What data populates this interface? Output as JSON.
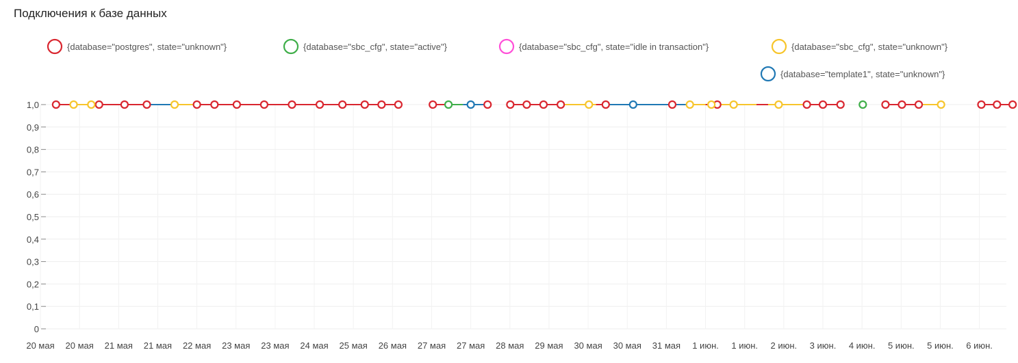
{
  "chart_data": {
    "type": "line",
    "title": "Подключения к базе данных",
    "xlabel": "",
    "ylabel": "",
    "ylim": [
      0,
      1
    ],
    "y_ticks": [
      "0",
      "0,1",
      "0,2",
      "0,3",
      "0,4",
      "0,5",
      "0,6",
      "0,7",
      "0,8",
      "0,9",
      "1,0"
    ],
    "x_tick_labels": [
      "20 мая",
      "20 мая",
      "21 мая",
      "21 мая",
      "22 мая",
      "23 мая",
      "23 мая",
      "24 мая",
      "25 мая",
      "26 мая",
      "27 мая",
      "27 мая",
      "28 мая",
      "29 мая",
      "30 мая",
      "30 мая",
      "31 мая",
      "1 июн.",
      "1 июн.",
      "2 июн.",
      "3 июн.",
      "4 июн.",
      "5 июн.",
      "5 июн.",
      "6 июн."
    ],
    "x_range": [
      0,
      24.4
    ],
    "grid": true,
    "legend_position": "top-right",
    "series": [
      {
        "name": "{database=\"postgres\", state=\"unknown\"}",
        "color": "#d9262f",
        "points": [
          [
            0.4,
            1
          ],
          [
            1.5,
            1
          ],
          [
            2.15,
            1
          ],
          [
            2.72,
            1
          ],
          [
            4.0,
            1
          ],
          [
            4.45,
            1
          ],
          [
            5.02,
            1
          ],
          [
            5.72,
            1
          ],
          [
            6.43,
            1
          ],
          [
            7.14,
            1
          ],
          [
            7.72,
            1
          ],
          [
            8.29,
            1
          ],
          [
            8.72,
            1
          ],
          [
            9.15,
            1
          ],
          [
            10.03,
            1
          ],
          [
            11.43,
            1
          ],
          [
            12.01,
            1
          ],
          [
            12.43,
            1
          ],
          [
            12.86,
            1
          ],
          [
            13.3,
            1
          ],
          [
            14.45,
            1
          ],
          [
            16.15,
            1
          ],
          [
            17.3,
            1
          ],
          [
            19.59,
            1
          ],
          [
            20.0,
            1
          ],
          [
            20.45,
            1
          ],
          [
            21.6,
            1
          ],
          [
            22.02,
            1
          ],
          [
            22.45,
            1
          ],
          [
            24.05,
            1
          ],
          [
            24.45,
            1
          ],
          [
            24.85,
            1
          ]
        ],
        "segments": [
          [
            0.4,
            2.2
          ],
          [
            2.2,
            2.72
          ],
          [
            4.0,
            4.45
          ],
          [
            4.45,
            9.15
          ],
          [
            10.03,
            10.4
          ],
          [
            12.01,
            13.3
          ],
          [
            14.2,
            14.45
          ],
          [
            17.0,
            17.3
          ],
          [
            18.3,
            18.6
          ],
          [
            19.59,
            20.45
          ],
          [
            21.6,
            22.45
          ],
          [
            24.05,
            24.85
          ]
        ]
      },
      {
        "name": "{database=\"sbc_cfg\", state=\"active\"}",
        "color": "#3fae49",
        "points": [
          [
            10.43,
            1
          ],
          [
            21.02,
            1
          ]
        ],
        "segments": [
          [
            10.4,
            10.8
          ]
        ]
      },
      {
        "name": "{database=\"sbc_cfg\", state=\"idle in transaction\"}",
        "color": "#ff4fd8",
        "points": [],
        "segments": []
      },
      {
        "name": "{database=\"sbc_cfg\", state=\"unknown\"}",
        "color": "#f7c52b",
        "points": [
          [
            0.85,
            1
          ],
          [
            1.3,
            1
          ],
          [
            3.43,
            1
          ],
          [
            14.02,
            1
          ],
          [
            16.6,
            1
          ],
          [
            17.15,
            1
          ],
          [
            17.72,
            1
          ],
          [
            18.87,
            1
          ],
          [
            23.02,
            1
          ]
        ],
        "segments": [
          [
            0.85,
            1.3
          ],
          [
            3.43,
            4.0
          ],
          [
            13.3,
            14.2
          ],
          [
            16.6,
            17.0
          ],
          [
            17.3,
            18.3
          ],
          [
            18.6,
            19.59
          ],
          [
            22.45,
            23.02
          ]
        ]
      },
      {
        "name": "{database=\"template1\", state=\"unknown\"}",
        "color": "#1f78b4",
        "points": [
          [
            11.0,
            1
          ],
          [
            15.15,
            1
          ]
        ],
        "segments": [
          [
            2.72,
            3.43
          ],
          [
            10.8,
            11.43
          ],
          [
            14.45,
            16.6
          ]
        ]
      }
    ]
  }
}
